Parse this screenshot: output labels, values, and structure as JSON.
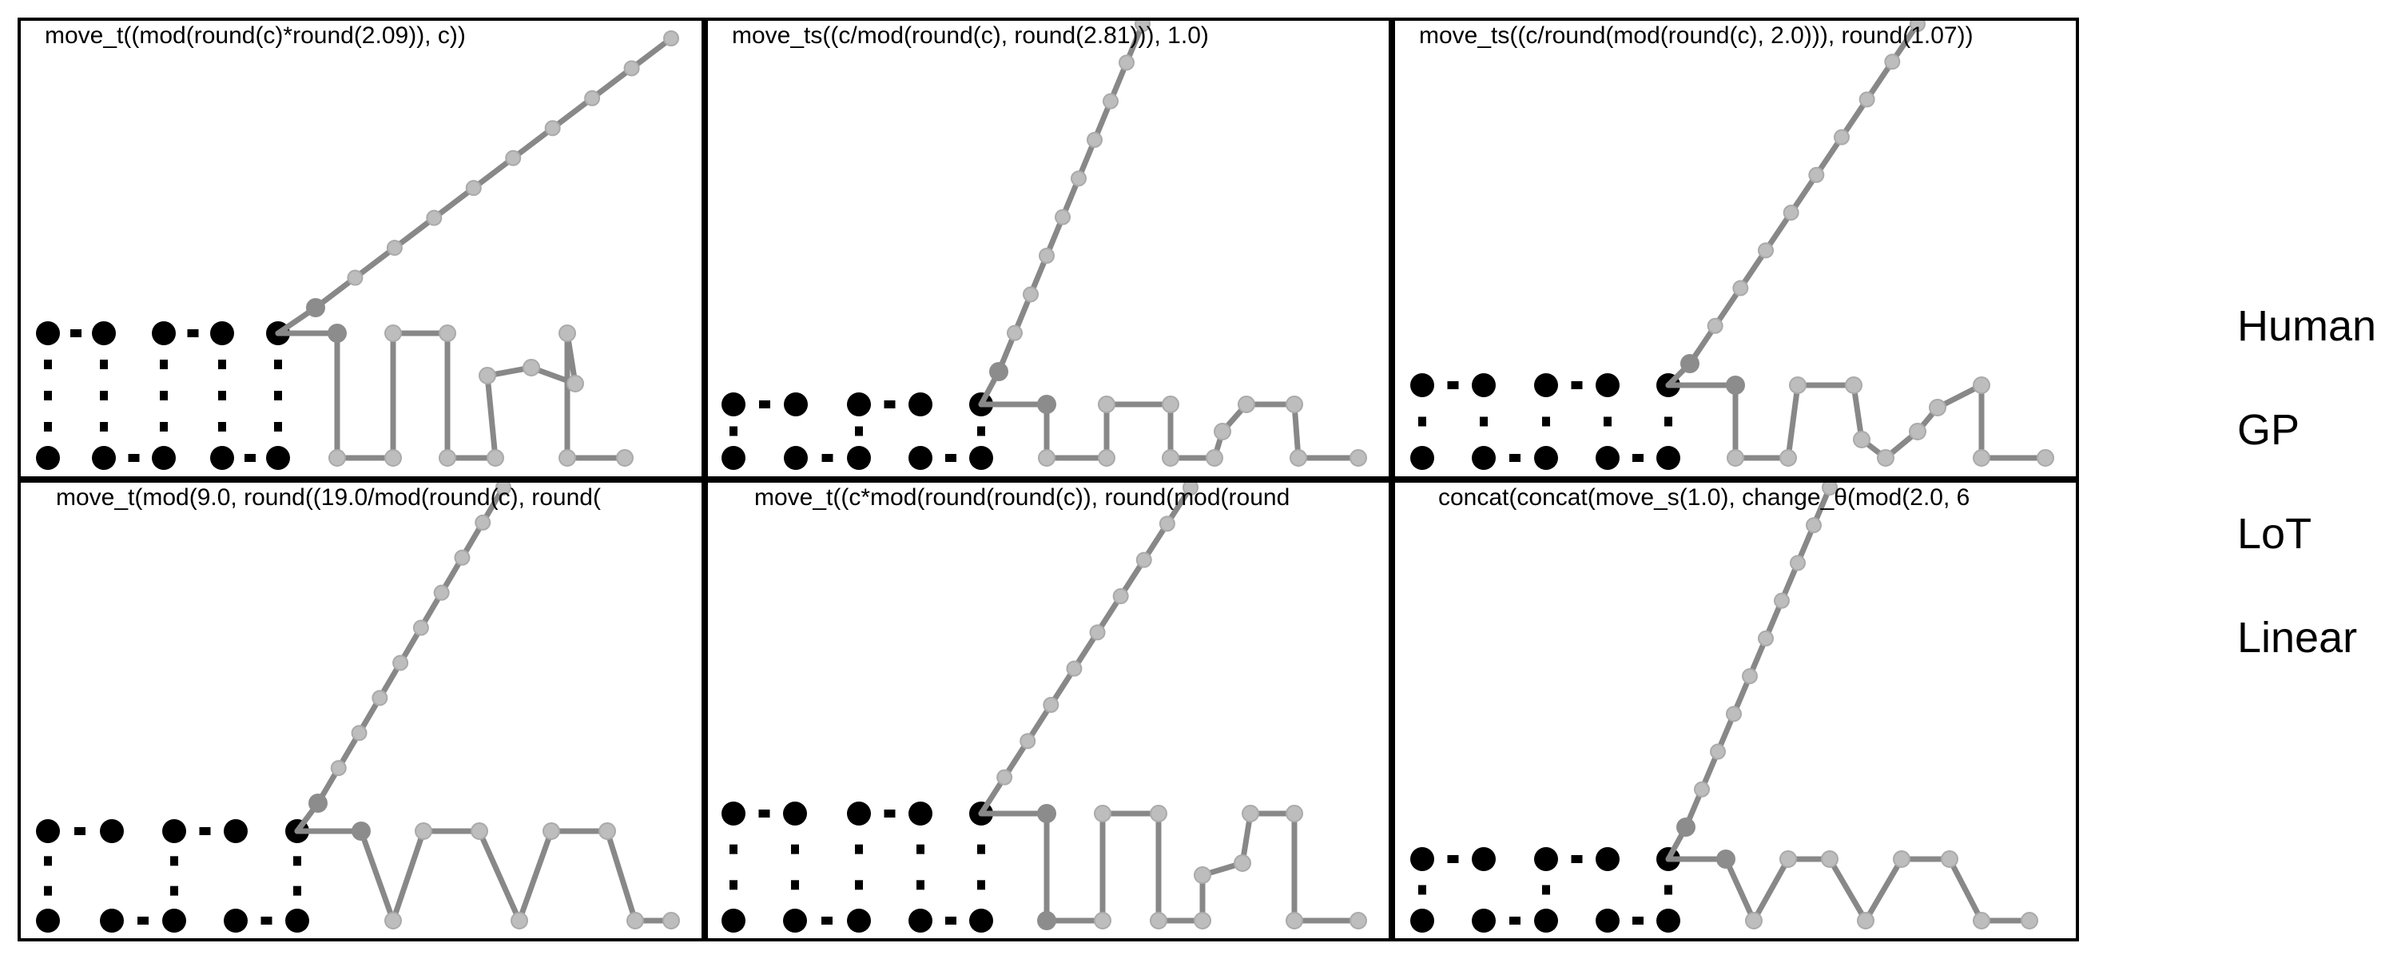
{
  "figure": {
    "panels": [
      {
        "title": "move_t((mod(round(c)*round(2.09)), c))"
      },
      {
        "title": "move_ts((c/mod(round(c), round(2.81))), 1.0)"
      },
      {
        "title": "move_ts((c/round(mod(round(c), 2.0))), round(1.07))"
      },
      {
        "title": "move_t(mod(9.0, round((19.0/mod(round(c), round("
      },
      {
        "title": "move_t((c*mod(round(round(c)), round(mod(round"
      },
      {
        "title": "concat(concat(move_s(1.0), change_θ(mod(2.0, 6"
      }
    ],
    "legend": [
      "Human",
      "GP",
      "LoT",
      "Linear"
    ]
  }
}
